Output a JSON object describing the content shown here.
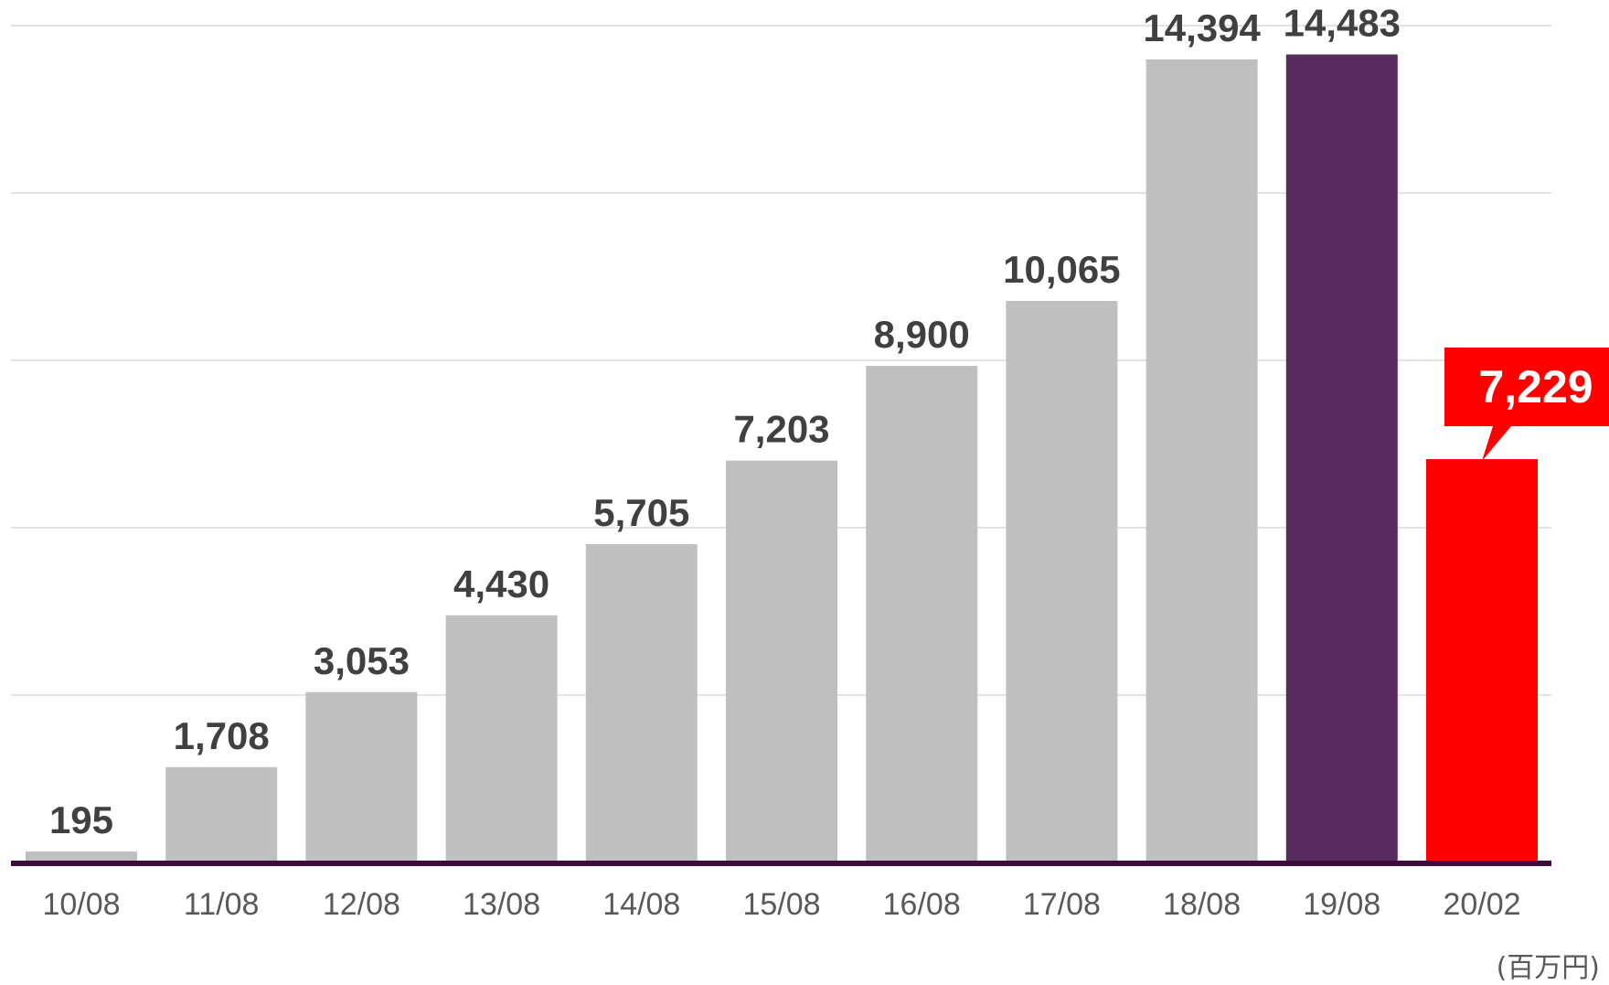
{
  "chart_data": {
    "type": "bar",
    "categories": [
      "10/08",
      "11/08",
      "12/08",
      "13/08",
      "14/08",
      "15/08",
      "16/08",
      "17/08",
      "18/08",
      "19/08",
      "20/02"
    ],
    "values": [
      195,
      1708,
      3053,
      4430,
      5705,
      7203,
      8900,
      10065,
      14394,
      14483,
      7229
    ],
    "value_labels": [
      "195",
      "1,708",
      "3,053",
      "4,430",
      "5,705",
      "7,203",
      "8,900",
      "10,065",
      "14,394",
      "14,483",
      "7,229"
    ],
    "bar_colors": [
      "#bfbfbf",
      "#bfbfbf",
      "#bfbfbf",
      "#bfbfbf",
      "#bfbfbf",
      "#bfbfbf",
      "#bfbfbf",
      "#bfbfbf",
      "#bfbfbf",
      "#582b5f",
      "#ff0000"
    ],
    "highlight": {
      "index": 10,
      "label": "7,229",
      "style": "callout",
      "color": "#ff0000"
    },
    "unit_label": "(百万円)",
    "ylim": [
      0,
      15000
    ],
    "grid": true,
    "gridline_step": 3000,
    "axis_color": "#3d0a3a",
    "gridline_color": "#d9d9d9",
    "title": "",
    "xlabel": "",
    "ylabel": ""
  }
}
